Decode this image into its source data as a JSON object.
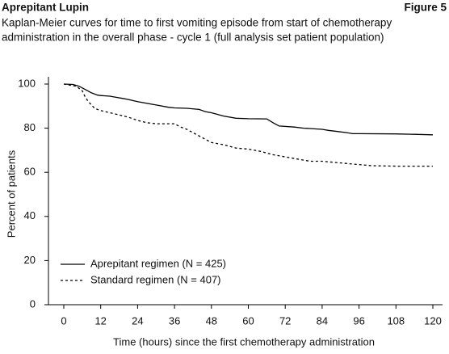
{
  "header": {
    "left": "Aprepitant Lupin",
    "right": "Figure 5"
  },
  "chart_data": {
    "type": "line",
    "title": [
      "Kaplan-Meier curves for time to first vomiting episode from start of chemotherapy",
      "administration in the overall phase - cycle 1 (full analysis set patient population)"
    ],
    "x_label": "Time (hours) since the first chemotherapy administration",
    "y_label": "Percent of patients",
    "xlim": [
      0,
      120
    ],
    "xticks": [
      0,
      12,
      24,
      36,
      48,
      60,
      72,
      84,
      96,
      108,
      120
    ],
    "ylim": [
      0,
      100
    ],
    "yticks": [
      0,
      20,
      40,
      60,
      80,
      100
    ],
    "legend": "lower-left",
    "series": [
      {
        "name": "Aprepitant regimen (N = 425)",
        "color": "#000000",
        "line_style": "solid",
        "x": [
          0,
          3,
          5,
          7,
          9,
          11,
          12,
          15,
          17,
          19,
          21,
          24,
          30,
          34,
          36,
          40,
          44,
          46,
          48,
          52,
          56,
          60,
          66,
          68,
          70,
          75,
          78,
          84,
          86,
          89,
          92,
          94,
          96,
          108,
          114,
          120
        ],
        "values": [
          100,
          99.8,
          99,
          97.5,
          96,
          95,
          94.8,
          94.5,
          94,
          93.5,
          93,
          92,
          90.5,
          89.5,
          89.2,
          89,
          88.5,
          87.5,
          87,
          85.5,
          84.5,
          84.3,
          84.2,
          82.5,
          81,
          80.5,
          80,
          79.5,
          79,
          78.5,
          78,
          77.5,
          77.5,
          77.4,
          77.2,
          77
        ]
      },
      {
        "name": "Standard regimen (N = 407)",
        "color": "#000000",
        "line_style": "dashed",
        "x": [
          0,
          4,
          6,
          7,
          8,
          10,
          12,
          15,
          18,
          21,
          24,
          27,
          30,
          36,
          38,
          40,
          42,
          46,
          48,
          52,
          56,
          60,
          64,
          68,
          72,
          76,
          80,
          84,
          88,
          92,
          96,
          100,
          108,
          120
        ],
        "values": [
          100,
          99,
          97,
          94,
          92,
          89,
          88,
          87,
          86,
          85,
          83.5,
          82.5,
          82,
          82,
          80.5,
          79.5,
          78,
          75,
          73.5,
          72.5,
          71,
          70.5,
          69.5,
          68,
          67,
          66,
          65,
          65,
          64.5,
          64,
          63.5,
          63,
          62.8,
          62.8
        ]
      }
    ]
  }
}
